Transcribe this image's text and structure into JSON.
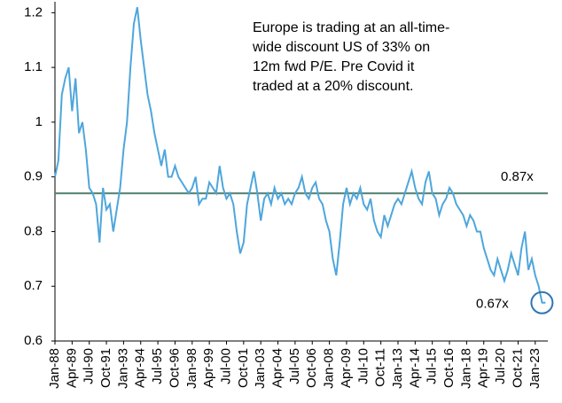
{
  "chart_data": {
    "type": "line",
    "x": [
      "Jan-88",
      "Apr-88",
      "Jul-88",
      "Oct-88",
      "Jan-89",
      "Apr-89",
      "Jul-89",
      "Oct-89",
      "Jan-90",
      "Apr-90",
      "Jul-90",
      "Oct-90",
      "Jan-91",
      "Apr-91",
      "Jul-91",
      "Oct-91",
      "Jan-92",
      "Apr-92",
      "Jul-92",
      "Oct-92",
      "Jan-93",
      "Apr-93",
      "Jul-93",
      "Oct-93",
      "Jan-94",
      "Apr-94",
      "Jul-94",
      "Oct-94",
      "Jan-95",
      "Apr-95",
      "Jul-95",
      "Oct-95",
      "Jan-96",
      "Apr-96",
      "Jul-96",
      "Oct-96",
      "Jan-97",
      "Apr-97",
      "Jul-97",
      "Oct-97",
      "Jan-98",
      "Apr-98",
      "Jul-98",
      "Oct-98",
      "Jan-99",
      "Apr-99",
      "Jul-99",
      "Oct-99",
      "Jan-00",
      "Apr-00",
      "Jul-00",
      "Oct-00",
      "Jan-01",
      "Apr-01",
      "Jul-01",
      "Oct-01",
      "Jan-02",
      "Apr-02",
      "Jul-02",
      "Oct-02",
      "Jan-03",
      "Apr-03",
      "Jul-03",
      "Oct-03",
      "Jan-04",
      "Apr-04",
      "Jul-04",
      "Oct-04",
      "Jan-05",
      "Apr-05",
      "Jul-05",
      "Oct-05",
      "Jan-06",
      "Apr-06",
      "Jul-06",
      "Oct-06",
      "Jan-07",
      "Apr-07",
      "Jul-07",
      "Oct-07",
      "Jan-08",
      "Apr-08",
      "Jul-08",
      "Oct-08",
      "Jan-09",
      "Apr-09",
      "Jul-09",
      "Oct-09",
      "Jan-10",
      "Apr-10",
      "Jul-10",
      "Oct-10",
      "Jan-11",
      "Apr-11",
      "Jul-11",
      "Oct-11",
      "Jan-12",
      "Apr-12",
      "Jul-12",
      "Oct-12",
      "Jan-13",
      "Apr-13",
      "Jul-13",
      "Oct-13",
      "Jan-14",
      "Apr-14",
      "Jul-14",
      "Oct-14",
      "Jan-15",
      "Apr-15",
      "Jul-15",
      "Oct-15",
      "Jan-16",
      "Apr-16",
      "Jul-16",
      "Oct-16",
      "Jan-17",
      "Apr-17",
      "Jul-17",
      "Oct-17",
      "Jan-18",
      "Apr-18",
      "Jul-18",
      "Oct-18",
      "Jan-19",
      "Apr-19",
      "Jul-19",
      "Oct-19",
      "Jan-20",
      "Apr-20",
      "Jul-20",
      "Oct-20",
      "Jan-21",
      "Apr-21",
      "Jul-21",
      "Oct-21",
      "Jan-22",
      "Apr-22",
      "Jul-22",
      "Oct-22",
      "Jan-23",
      "Apr-23",
      "Jul-23",
      "Oct-23"
    ],
    "values": [
      0.9,
      0.93,
      1.05,
      1.08,
      1.1,
      1.02,
      1.08,
      0.98,
      1.0,
      0.95,
      0.88,
      0.87,
      0.85,
      0.78,
      0.88,
      0.84,
      0.85,
      0.8,
      0.84,
      0.88,
      0.95,
      1.0,
      1.1,
      1.18,
      1.21,
      1.15,
      1.1,
      1.05,
      1.02,
      0.98,
      0.95,
      0.92,
      0.95,
      0.9,
      0.9,
      0.92,
      0.9,
      0.89,
      0.88,
      0.87,
      0.88,
      0.9,
      0.85,
      0.86,
      0.86,
      0.89,
      0.88,
      0.87,
      0.92,
      0.88,
      0.86,
      0.87,
      0.85,
      0.8,
      0.76,
      0.78,
      0.85,
      0.88,
      0.91,
      0.87,
      0.82,
      0.86,
      0.87,
      0.85,
      0.88,
      0.86,
      0.87,
      0.85,
      0.86,
      0.85,
      0.87,
      0.88,
      0.9,
      0.87,
      0.86,
      0.88,
      0.89,
      0.86,
      0.85,
      0.82,
      0.8,
      0.75,
      0.72,
      0.78,
      0.85,
      0.88,
      0.85,
      0.87,
      0.86,
      0.88,
      0.85,
      0.84,
      0.86,
      0.82,
      0.8,
      0.79,
      0.83,
      0.81,
      0.83,
      0.85,
      0.86,
      0.85,
      0.87,
      0.89,
      0.91,
      0.88,
      0.86,
      0.85,
      0.89,
      0.91,
      0.87,
      0.86,
      0.83,
      0.85,
      0.86,
      0.88,
      0.87,
      0.85,
      0.84,
      0.83,
      0.81,
      0.83,
      0.82,
      0.8,
      0.8,
      0.77,
      0.75,
      0.73,
      0.72,
      0.75,
      0.73,
      0.71,
      0.73,
      0.76,
      0.74,
      0.72,
      0.77,
      0.8,
      0.73,
      0.75,
      0.72,
      0.7,
      0.67,
      0.67
    ],
    "color": "#4ea6dc",
    "ylim": [
      0.6,
      1.22
    ],
    "yticks": [
      0.6,
      0.7,
      0.8,
      0.9,
      1,
      1.1,
      1.2
    ],
    "xticks": [
      "Jan-88",
      "Apr-89",
      "Jul-90",
      "Oct-91",
      "Jan-93",
      "Apr-94",
      "Jul-95",
      "Oct-96",
      "Jan-98",
      "Apr-99",
      "Jul-00",
      "Oct-01",
      "Jan-03",
      "Apr-04",
      "Jul-05",
      "Oct-06",
      "Jan-08",
      "Apr-09",
      "Jul-10",
      "Oct-11",
      "Jan-13",
      "Apr-14",
      "Jul-15",
      "Oct-16",
      "Jan-18",
      "Apr-19",
      "Jul-20",
      "Oct-21",
      "Jan-23"
    ],
    "reference_line": {
      "value": 0.87,
      "label": "0.87x",
      "color": "#4f7f6e"
    },
    "end_annotation": {
      "value": 0.67,
      "label": "0.67x"
    },
    "note": [
      "Europe is trading at an all-time-",
      "wide discount US of 33% on",
      "12m fwd P/E. Pre Covid it",
      "traded at a 20% discount."
    ]
  }
}
